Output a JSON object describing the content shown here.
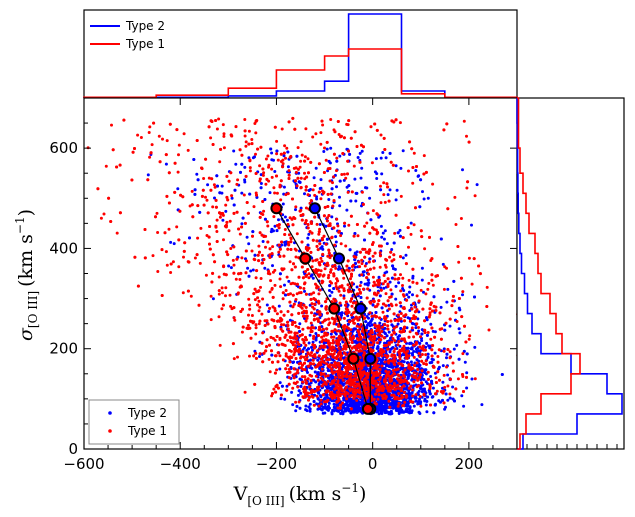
{
  "chart_data": {
    "type": "scatter",
    "title": "",
    "xlabel": "V[OIII] (km s^-1)",
    "ylabel": "σ[OIII] (km s^-1)",
    "xlabel_main": "V",
    "xlabel_sub": "[O III]",
    "xlabel_units": "(km s",
    "xlabel_exp": "−1",
    "xlabel_close": ")",
    "ylabel_main": "σ",
    "ylabel_sub": "[O III]",
    "ylabel_units": "(km s",
    "ylabel_exp": "−1",
    "ylabel_close": ")",
    "xlim": [
      -600,
      300
    ],
    "ylim": [
      0,
      700
    ],
    "xticks": [
      -600,
      -400,
      -200,
      0,
      200
    ],
    "xtick_labels": [
      "−600",
      "−400",
      "−200",
      "0",
      "200"
    ],
    "yticks": [
      0,
      200,
      400,
      600
    ],
    "ytick_labels": [
      "0",
      "200",
      "400",
      "600"
    ],
    "grid": false,
    "series": [
      {
        "name": "Type 2",
        "color": "#0000ff",
        "marker": "dot",
        "trend": [
          {
            "x": -5,
            "y": 80
          },
          {
            "x": -5,
            "y": 180
          },
          {
            "x": -25,
            "y": 280
          },
          {
            "x": -70,
            "y": 380
          },
          {
            "x": -120,
            "y": 480
          }
        ]
      },
      {
        "name": "Type 1",
        "color": "#ff0000",
        "marker": "dot",
        "trend": [
          {
            "x": -10,
            "y": 80
          },
          {
            "x": -40,
            "y": 180
          },
          {
            "x": -80,
            "y": 280
          },
          {
            "x": -140,
            "y": 380
          },
          {
            "x": -200,
            "y": 480
          }
        ]
      }
    ],
    "scatter_legend": {
      "location": "lower-left",
      "entries": [
        "Type 2",
        "Type 1"
      ]
    },
    "histogram_legend": {
      "location": "upper-left",
      "entries": [
        "Type 2",
        "Type 1"
      ]
    },
    "top_histogram": {
      "axis": "V[OIII]",
      "bin_edges": [
        -600,
        -450,
        -300,
        -200,
        -100,
        -50,
        60,
        150,
        300
      ],
      "type2_counts": [
        0.2,
        0.5,
        1.5,
        5,
        12,
        60,
        5,
        0.5
      ],
      "type1_counts": [
        0.5,
        2,
        7,
        20,
        30,
        35,
        3,
        0.5
      ]
    },
    "right_histogram": {
      "axis": "σ[OIII]",
      "bin_edges": [
        0,
        30,
        70,
        110,
        150,
        190,
        230,
        270,
        310,
        350,
        390,
        430,
        470,
        510,
        550,
        600,
        650,
        700
      ],
      "type2_counts": [
        2,
        20,
        35,
        30,
        18,
        8,
        5,
        3.5,
        2.5,
        1.5,
        1,
        0.6,
        0.4,
        0.3,
        0.2,
        0.1,
        0.05
      ],
      "type1_counts": [
        1,
        3,
        8,
        18,
        21,
        15,
        13,
        11,
        8,
        7,
        6,
        4,
        3,
        2,
        1,
        0.5,
        0.5
      ]
    }
  }
}
